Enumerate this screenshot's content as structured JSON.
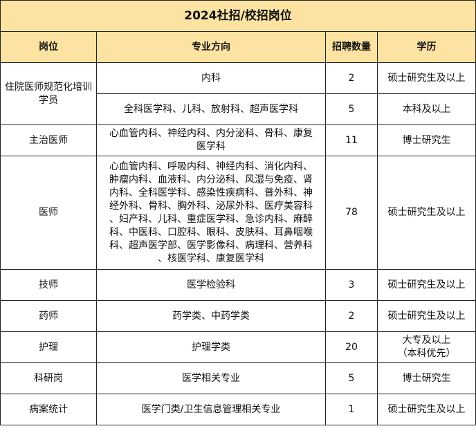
{
  "title": "2024社招/校招岗位",
  "columns": [
    "岗位",
    "专业方向",
    "招聘数量",
    "学历"
  ],
  "rows": [
    {
      "position": "住院医师规范化培训学员",
      "major": "内科",
      "count": "2",
      "education": "硕士研究生及以上"
    },
    {
      "major": "全科医学科、儿科、放射科、超声医学科",
      "count": "5",
      "education": "本科及以上"
    },
    {
      "position": "主治医师",
      "major_lines": [
        "心血管内科、神经内科、内分泌科、骨科、康复",
        "医学科"
      ],
      "count": "11",
      "education": "博士研究生"
    },
    {
      "position": "医师",
      "major_lines": [
        "心血管内科、呼吸内科、神经内科、消化内科、",
        "肿瘤内科、血液科、内分泌科、风湿与免疫、肾",
        "内科、全科医学科、感染性疾病科、普外科、神",
        "经外科、骨科、胸外科、泌尿外科、医疗美容科",
        "、妇产科、儿科、重症医学科、急诊内科、麻醉",
        "科、中医科、口腔科、眼科、皮肤科、耳鼻咽喉",
        "科、超声医学部、医学影像科、病理科、营养科",
        "、核医学科、康复医学科"
      ],
      "count": "78",
      "education": "硕士研究生及以上"
    },
    {
      "position": "技师",
      "major": "医学检验科",
      "count": "3",
      "education": "硕士研究生及以上"
    },
    {
      "position": "药师",
      "major": "药学类、中药学类",
      "count": "2",
      "education": "硕士研究生及以上"
    },
    {
      "position": "护理",
      "major": "护理学类",
      "count": "20",
      "education_lines": [
        "大专及以上",
        "（本科优先）"
      ]
    },
    {
      "position": "科研岗",
      "major": "医学相关专业",
      "count": "5",
      "education": "博士研究生"
    },
    {
      "position": "病案统计",
      "major": "医学门类/卫生信息管理相关专业",
      "count": "1",
      "education": "硕士研究生及以上"
    }
  ]
}
